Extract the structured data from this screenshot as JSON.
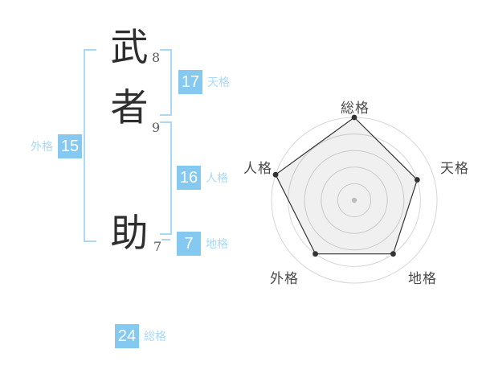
{
  "name_display": {
    "characters": [
      {
        "char": "武",
        "strokes": "8"
      },
      {
        "char": "者",
        "strokes": "9"
      },
      {
        "char": "助",
        "strokes": "7"
      }
    ]
  },
  "badges": {
    "tenkaku": {
      "value": "17",
      "label": "天格"
    },
    "jinkaku": {
      "value": "16",
      "label": "人格"
    },
    "chikaku": {
      "value": "7",
      "label": "地格"
    },
    "gaikaku": {
      "value": "15",
      "label": "外格"
    },
    "soukaku": {
      "value": "24",
      "label": "総格"
    }
  },
  "colors": {
    "badge_blue": "#85c9f0",
    "bracket_blue": "#a9d9f6",
    "chart_ring_gray": "#d6d6d6",
    "chart_line_dark": "#333333",
    "chart_center_dot": "#c9c9c9",
    "axis_label_gray": "#4a4a4a"
  },
  "chart_data": {
    "type": "radar",
    "axes": [
      "総格",
      "天格",
      "地格",
      "外格",
      "人格"
    ],
    "values": [
      5,
      4,
      4,
      4,
      5
    ],
    "max": 5,
    "rings": 5,
    "start_angle_deg": -90,
    "direction": "clockwise",
    "grid": "concentric-circles",
    "legend": "none",
    "title": ""
  }
}
